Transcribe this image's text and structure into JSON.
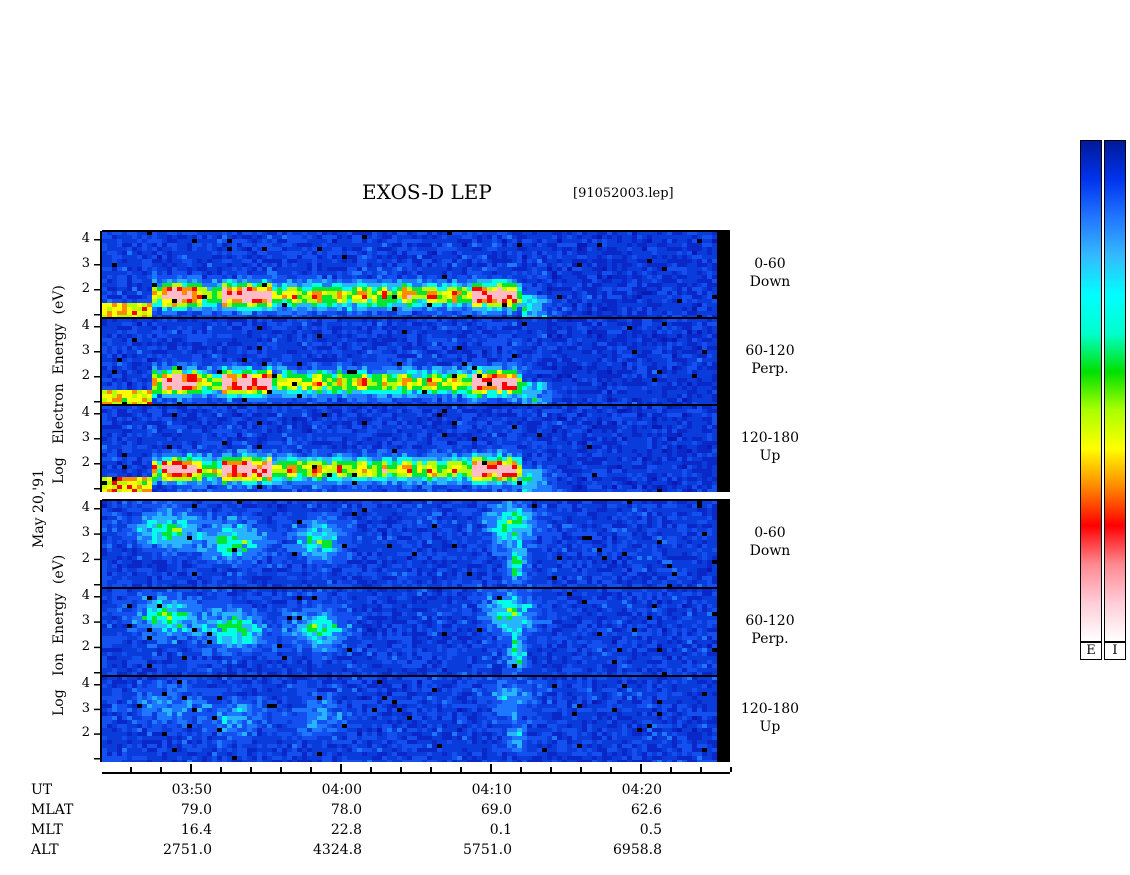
{
  "header": {
    "title": "EXOS-D LEP",
    "file": "[91052003.lep]"
  },
  "side_labels": {
    "date": "May 20,'91",
    "electron_group": [
      "Log",
      "Electron",
      "Energy",
      "(eV)"
    ],
    "ion_group": [
      "Log",
      "Ion",
      "Energy",
      "(eV)"
    ]
  },
  "panels": [
    {
      "species": "electron",
      "angle": "0-60",
      "direction": "Down"
    },
    {
      "species": "electron",
      "angle": "60-120",
      "direction": "Perp."
    },
    {
      "species": "electron",
      "angle": "120-180",
      "direction": "Up"
    },
    {
      "species": "ion",
      "angle": "0-60",
      "direction": "Down"
    },
    {
      "species": "ion",
      "angle": "60-120",
      "direction": "Perp."
    },
    {
      "species": "ion",
      "angle": "120-180",
      "direction": "Up"
    }
  ],
  "colorbar": {
    "labels": [
      "E",
      "I"
    ],
    "colors": [
      "#ffffff",
      "#ffccd8",
      "#ff8890",
      "#ff0000",
      "#ff8800",
      "#ffff00",
      "#aaff00",
      "#00e000",
      "#00ffcc",
      "#00ffff",
      "#33bbff",
      "#2277ff",
      "#0033ee",
      "#001a99"
    ]
  },
  "chart_data": {
    "type": "heatmap",
    "title": "EXOS-D LEP",
    "y_ticks": [
      "1",
      "2",
      "3",
      "4"
    ],
    "ylabel": "Log Energy (eV)",
    "xlabel": "UT",
    "x_ticks": [
      "03:50",
      "04:00",
      "04:10",
      "04:20"
    ],
    "ephemeris": [
      {
        "label": "UT",
        "values": [
          "03:50",
          "04:00",
          "04:10",
          "04:20"
        ]
      },
      {
        "label": "MLAT",
        "values": [
          "79.0",
          "78.0",
          "69.0",
          "62.6"
        ]
      },
      {
        "label": "MLT",
        "values": [
          "16.4",
          "22.8",
          "0.1",
          "0.5"
        ]
      },
      {
        "label": "ALT",
        "values": [
          "2751.0",
          "4324.8",
          "5751.0",
          "6958.8"
        ]
      }
    ]
  }
}
